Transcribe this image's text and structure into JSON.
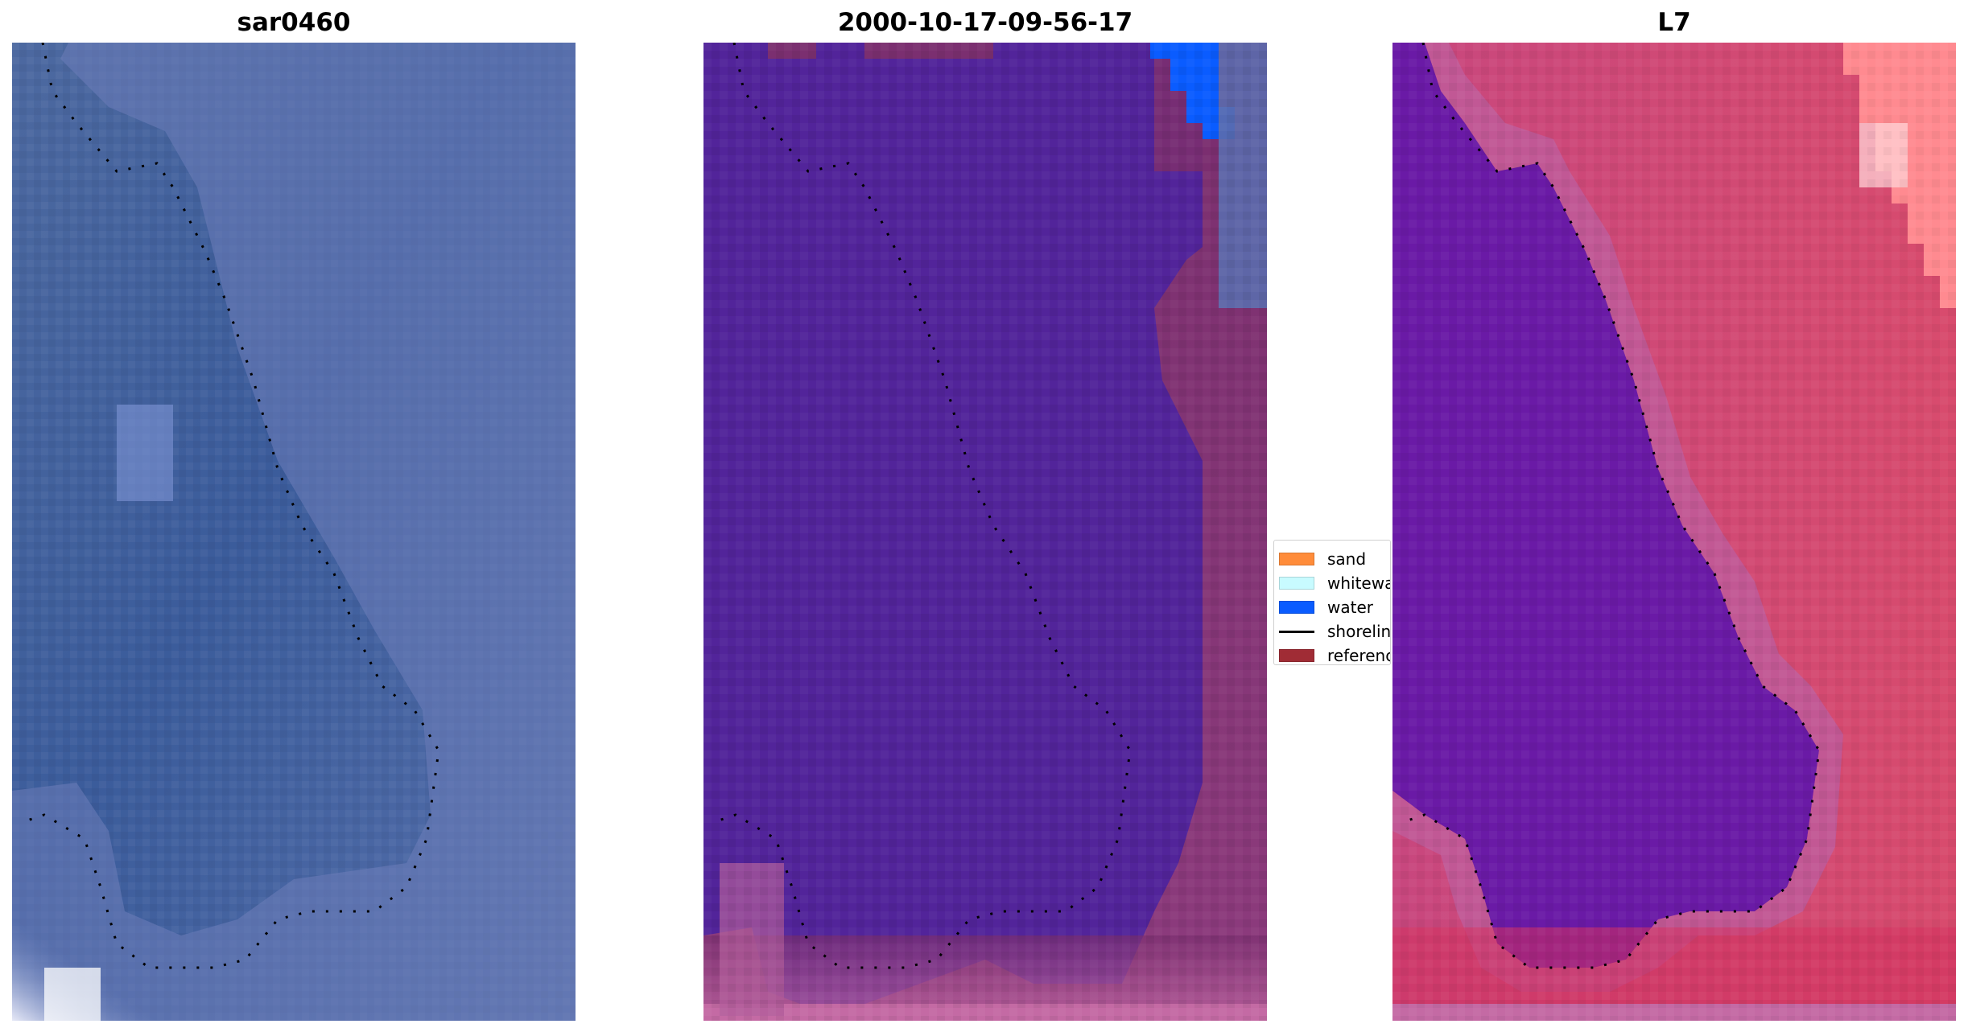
{
  "panels": [
    {
      "title": "sar0460",
      "kind": "rgb-image"
    },
    {
      "title": "2000-10-17-09-56-17",
      "kind": "classified-image"
    },
    {
      "title": "L7",
      "kind": "index-image"
    }
  ],
  "legend": {
    "items": [
      {
        "label": "sand",
        "color": "#ff8c3a",
        "kind": "patch"
      },
      {
        "label": "whitewa",
        "color": "#c8fbff",
        "kind": "patch"
      },
      {
        "label": "water",
        "color": "#0a5cff",
        "kind": "patch"
      },
      {
        "label": "shorelin",
        "color": "#000000",
        "kind": "line"
      },
      {
        "label": "referenc",
        "color": "#a02c35",
        "kind": "patch"
      }
    ]
  },
  "colors": {
    "sar_water": "#3a5a98",
    "sar_land": "#6a78b0",
    "class_water_overlay": "#52249a",
    "class_land": "#7a2e6e",
    "class_pink": "#c46aa4",
    "index_water": "#6a1aa6",
    "index_land": "#c8477e",
    "index_edge": "#e35d8c",
    "index_bright": "#ff6a78"
  }
}
